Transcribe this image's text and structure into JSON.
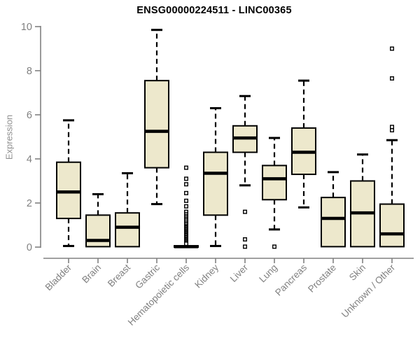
{
  "chart_data": {
    "type": "boxplot",
    "title": "ENSG00000224511 - LINC00365",
    "ylabel": "Expression",
    "xlabel": "",
    "ylim": [
      0,
      10
    ],
    "yticks": [
      0,
      2,
      4,
      6,
      8,
      10
    ],
    "grid": false,
    "legend": false,
    "colors": {
      "box_fill": "#EDE8CC",
      "box_border": "#000000",
      "median": "#000000",
      "whisker": "#000000",
      "outlier_border": "#000000",
      "outlier_fill": "#ffffff",
      "axis": "#808080",
      "tick_label": "#808080",
      "title": "#000000",
      "ylabel_color": "#8f8f8f",
      "background": "#ffffff"
    },
    "categories": [
      "Bladder",
      "Brain",
      "Breast",
      "Gastric",
      "Hematopoietic cells",
      "Kidney",
      "Liver",
      "Lung",
      "Pancreas",
      "Prostate",
      "Skin",
      "Unknown / Other"
    ],
    "boxes": [
      {
        "category": "Bladder",
        "whisker_low": 0.05,
        "q1": 1.3,
        "median": 2.5,
        "q3": 3.85,
        "whisker_high": 5.75,
        "outliers": []
      },
      {
        "category": "Brain",
        "whisker_low": 0.02,
        "q1": 0.02,
        "median": 0.3,
        "q3": 1.45,
        "whisker_high": 2.4,
        "outliers": []
      },
      {
        "category": "Breast",
        "whisker_low": 0.02,
        "q1": 0.02,
        "median": 0.9,
        "q3": 1.55,
        "whisker_high": 3.35,
        "outliers": []
      },
      {
        "category": "Gastric",
        "whisker_low": 1.95,
        "q1": 3.6,
        "median": 5.25,
        "q3": 7.55,
        "whisker_high": 9.85,
        "outliers": []
      },
      {
        "category": "Hematopoietic cells",
        "whisker_low": 0,
        "q1": 0,
        "median": 0.02,
        "q3": 0.06,
        "whisker_high": 0.1,
        "outliers": [
          3.6,
          3.1,
          2.85,
          2.45,
          2.1,
          1.85,
          1.6,
          1.5,
          1.42,
          1.35,
          1.28,
          1.22,
          1.15,
          1.08,
          1.02,
          0.95,
          0.9,
          0.85,
          0.8,
          0.75,
          0.7,
          0.65,
          0.6,
          0.55,
          0.5,
          0.45,
          0.4,
          0.35,
          0.3,
          0.25,
          0.2,
          0.15
        ]
      },
      {
        "category": "Kidney",
        "whisker_low": 0.05,
        "q1": 1.45,
        "median": 3.35,
        "q3": 4.3,
        "whisker_high": 6.3,
        "outliers": []
      },
      {
        "category": "Liver",
        "whisker_low": 2.8,
        "q1": 4.3,
        "median": 4.95,
        "q3": 5.5,
        "whisker_high": 6.85,
        "outliers": [
          1.6,
          0.35,
          0.02
        ]
      },
      {
        "category": "Lung",
        "whisker_low": 0.8,
        "q1": 2.15,
        "median": 3.1,
        "q3": 3.7,
        "whisker_high": 4.95,
        "outliers": [
          0.02
        ]
      },
      {
        "category": "Pancreas",
        "whisker_low": 1.8,
        "q1": 3.3,
        "median": 4.3,
        "q3": 5.4,
        "whisker_high": 7.55,
        "outliers": []
      },
      {
        "category": "Prostate",
        "whisker_low": 0.02,
        "q1": 0.02,
        "median": 1.3,
        "q3": 2.25,
        "whisker_high": 3.4,
        "outliers": []
      },
      {
        "category": "Skin",
        "whisker_low": 0.02,
        "q1": 0.02,
        "median": 1.55,
        "q3": 3.0,
        "whisker_high": 4.2,
        "outliers": []
      },
      {
        "category": "Unknown / Other",
        "whisker_low": 0.02,
        "q1": 0.02,
        "median": 0.6,
        "q3": 1.95,
        "whisker_high": 4.85,
        "outliers": [
          9.0,
          7.65,
          5.45,
          5.3
        ]
      }
    ]
  }
}
